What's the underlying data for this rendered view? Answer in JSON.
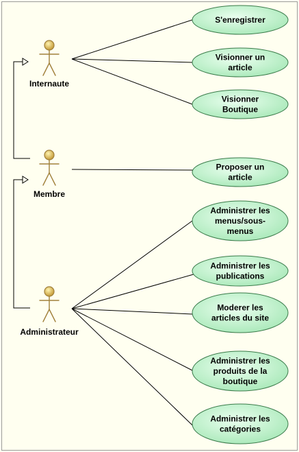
{
  "actors": [
    {
      "id": "internaute",
      "label": "Internaute"
    },
    {
      "id": "membre",
      "label": "Membre"
    },
    {
      "id": "administrateur",
      "label": "Administrateur"
    }
  ],
  "use_cases": [
    {
      "id": "uc1",
      "lines": [
        "S'enregistrer"
      ]
    },
    {
      "id": "uc2",
      "lines": [
        "Visionner un",
        "article"
      ]
    },
    {
      "id": "uc3",
      "lines": [
        "Visionner",
        "Boutique"
      ]
    },
    {
      "id": "uc4",
      "lines": [
        "Proposer un",
        "article"
      ]
    },
    {
      "id": "uc5",
      "lines": [
        "Administrer les",
        "menus/sous-",
        "menus"
      ]
    },
    {
      "id": "uc6",
      "lines": [
        "Administrer les",
        "publications"
      ]
    },
    {
      "id": "uc7",
      "lines": [
        "Moderer les",
        "articles du site"
      ]
    },
    {
      "id": "uc8",
      "lines": [
        "Administrer les",
        "produits de la",
        "boutique"
      ]
    },
    {
      "id": "uc9",
      "lines": [
        "Administrer les",
        "catégories"
      ]
    }
  ],
  "associations": [
    [
      "internaute",
      "uc1"
    ],
    [
      "internaute",
      "uc2"
    ],
    [
      "internaute",
      "uc3"
    ],
    [
      "membre",
      "uc4"
    ],
    [
      "administrateur",
      "uc5"
    ],
    [
      "administrateur",
      "uc6"
    ],
    [
      "administrateur",
      "uc7"
    ],
    [
      "administrateur",
      "uc8"
    ],
    [
      "administrateur",
      "uc9"
    ]
  ],
  "generalizations": [
    {
      "child": "membre",
      "parent": "internaute"
    },
    {
      "child": "administrateur",
      "parent": "membre"
    }
  ],
  "colors": {
    "background": "#FFFFF0",
    "actor_stroke": "#A0803A",
    "actor_head_light": "#FFF4B0",
    "actor_head_dark": "#C8A040",
    "usecase_fill_light": "#EAFFEF",
    "usecase_fill_dark": "#A8E8B8",
    "usecase_stroke": "#3a7a4a"
  }
}
